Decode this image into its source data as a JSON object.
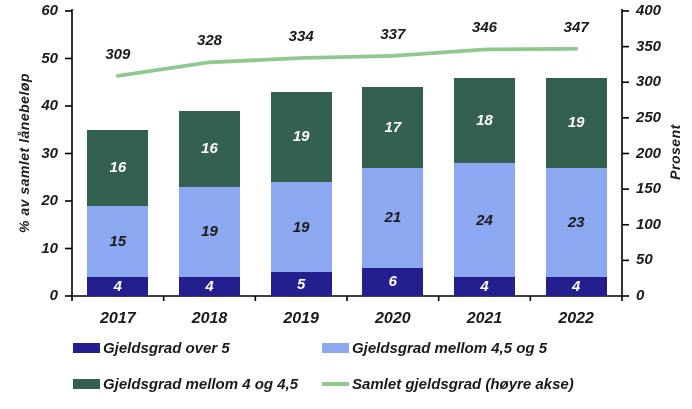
{
  "chart_data": {
    "type": "bar",
    "subtype": "stacked-bars-with-right-axis-line",
    "title": "",
    "categories": [
      "2017",
      "2018",
      "2019",
      "2020",
      "2021",
      "2022"
    ],
    "series": [
      {
        "name": "Gjeldsgrad over 5",
        "axis": "left",
        "values": [
          4,
          4,
          5,
          6,
          4,
          4
        ],
        "color": "#241F8E",
        "label_color": "#FFFFFF"
      },
      {
        "name": "Gjeldsgrad mellom 4,5 og 5",
        "axis": "left",
        "values": [
          15,
          19,
          19,
          21,
          24,
          23
        ],
        "color": "#8CA8F0",
        "label_color": "#1B1B1B"
      },
      {
        "name": "Gjeldsgrad mellom 4 og 4,5",
        "axis": "left",
        "values": [
          16,
          16,
          19,
          17,
          18,
          19
        ],
        "color": "#33604F",
        "label_color": "#FFFFFF"
      }
    ],
    "line_series": {
      "name": "Samlet gjeldsgrad (høyre akse)",
      "axis": "right",
      "values": [
        309,
        328,
        334,
        337,
        346,
        347
      ],
      "color": "#90C98F",
      "label_color": "#1B1B1B"
    },
    "left_axis": {
      "title": "% av samlet lånebeløp",
      "min": 0,
      "max": 60,
      "step": 10,
      "ticks": [
        "0",
        "10",
        "20",
        "30",
        "40",
        "50",
        "60"
      ]
    },
    "right_axis": {
      "title": "Prosent",
      "min": 0,
      "max": 400,
      "step": 50,
      "ticks": [
        "0",
        "50",
        "100",
        "150",
        "200",
        "250",
        "300",
        "350",
        "400"
      ]
    },
    "grid": "off",
    "legend_position": "bottom"
  }
}
